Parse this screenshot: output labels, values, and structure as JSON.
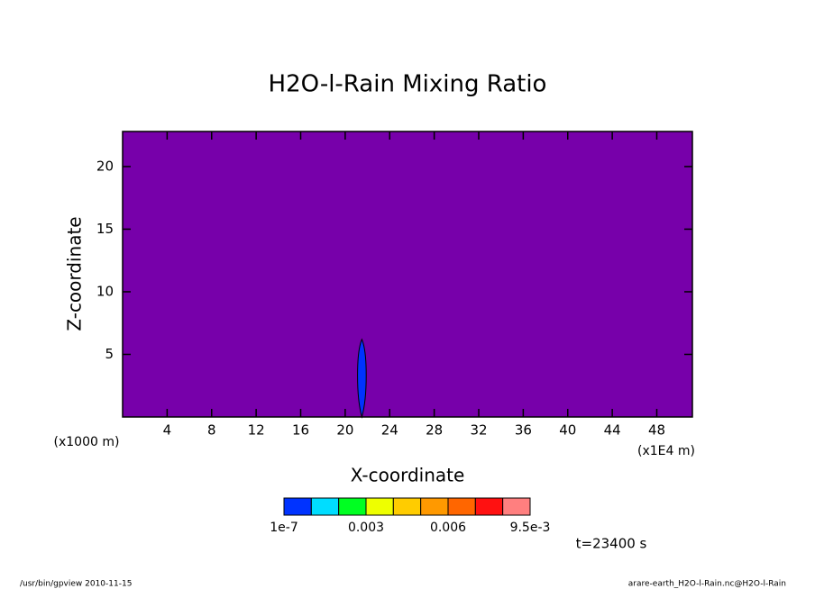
{
  "chart_data": {
    "type": "contour",
    "title": "H2O-l-Rain Mixing Ratio",
    "x_label": "X-coordinate",
    "y_label": "Z-coordinate",
    "x_unit_left": "(x1000 m)",
    "x_unit_right": "(x1E4 m)",
    "xlim": [
      0,
      51.2
    ],
    "ylim": [
      0,
      22.8
    ],
    "xticks": [
      4,
      8,
      12,
      16,
      20,
      24,
      28,
      32,
      36,
      40,
      44,
      48
    ],
    "yticks": [
      5,
      10,
      15,
      20
    ],
    "background_color": "#7700aa",
    "features": [
      {
        "x": 21.5,
        "width": 0.8,
        "top": 6.2,
        "color": "#0033ff"
      }
    ],
    "colorbar": {
      "levels": [
        1e-07,
        0.001,
        0.002,
        0.003,
        0.004,
        0.005,
        0.006,
        0.007,
        0.008,
        0.0095
      ],
      "colors": [
        "#0033ff",
        "#00ddff",
        "#00ff22",
        "#eeff00",
        "#ffcc00",
        "#ff9900",
        "#ff6600",
        "#ff1111",
        "#ff7f7f"
      ],
      "ticks": [
        1e-07,
        0.003,
        0.006,
        {
          "value": 0.0095,
          "label": "9.5e-3"
        }
      ]
    },
    "time_label": "t=23400 s",
    "footer_left": "/usr/bin/gpview  2010-11-15",
    "footer_right": "arare-earth_H2O-l-Rain.nc@H2O-l-Rain"
  }
}
